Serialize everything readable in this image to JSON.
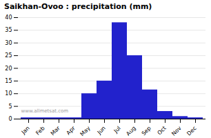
{
  "chart_data": {
    "type": "bar",
    "title": "Saikhan-Ovoo : precipitation (mm)",
    "categories": [
      "Jan",
      "Feb",
      "Mar",
      "Apr",
      "May",
      "Jun",
      "Jul",
      "Aug",
      "Sep",
      "Oct",
      "Nov",
      "Dec"
    ],
    "values": [
      0.5,
      0.5,
      0.5,
      0.5,
      10.0,
      15.0,
      38.0,
      25.0,
      11.5,
      3.0,
      1.0,
      0.5
    ],
    "color": "#2222cc",
    "ylim": [
      0,
      40
    ],
    "yticks": [
      0,
      5,
      10,
      15,
      20,
      25,
      30,
      35,
      40
    ],
    "grid": true,
    "annotations": [
      "www.allmetsat.com"
    ]
  }
}
